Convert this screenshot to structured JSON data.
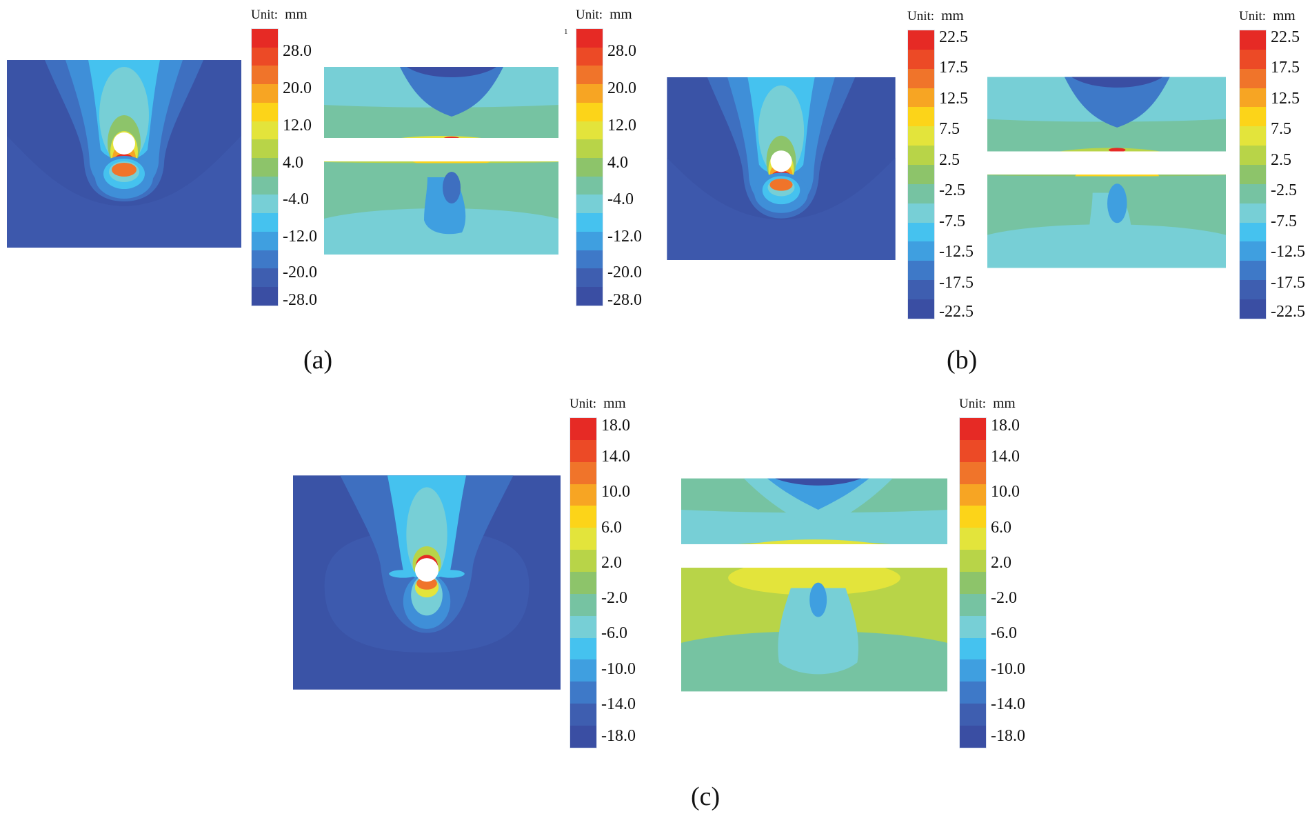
{
  "figure": {
    "panels": [
      {
        "caption": "(a)",
        "legend_left": {
          "unit_label": "Unit:",
          "unit": "mm",
          "ticks": [
            "28.0",
            "20.0",
            "12.0",
            "4.0",
            "-4.0",
            "-12.0",
            "-20.0",
            "-28.0"
          ]
        },
        "legend_right": {
          "unit_label": "Unit:",
          "unit": "mm",
          "ticks": [
            "28.0",
            "20.0",
            "12.0",
            "4.0",
            "-4.0",
            "-12.0",
            "-20.0",
            "-28.0"
          ]
        },
        "stray_mark": "1"
      },
      {
        "caption": "(b)",
        "legend_left": {
          "unit_label": "Unit:",
          "unit": "mm",
          "ticks": [
            "22.5",
            "17.5",
            "12.5",
            "7.5",
            "2.5",
            "-2.5",
            "-7.5",
            "-12.5",
            "-17.5",
            "-22.5"
          ]
        },
        "legend_right": {
          "unit_label": "Unit:",
          "unit": "mm",
          "ticks": [
            "22.5",
            "17.5",
            "12.5",
            "7.5",
            "2.5",
            "-2.5",
            "-7.5",
            "-12.5",
            "-17.5",
            "-22.5"
          ]
        }
      },
      {
        "caption": "(c)",
        "legend_left": {
          "unit_label": "Unit:",
          "unit": "mm",
          "ticks": [
            "18.0",
            "14.0",
            "10.0",
            "6.0",
            "2.0",
            "-2.0",
            "-6.0",
            "-10.0",
            "-14.0",
            "-18.0"
          ]
        },
        "legend_right": {
          "unit_label": "Unit:",
          "unit": "mm",
          "ticks": [
            "18.0",
            "14.0",
            "10.0",
            "6.0",
            "2.0",
            "-2.0",
            "-6.0",
            "-10.0",
            "-14.0",
            "-18.0"
          ]
        }
      }
    ],
    "colorscale": [
      "#e62a25",
      "#ec4a26",
      "#f0742a",
      "#f7a523",
      "#fcd419",
      "#e3e43b",
      "#b8d448",
      "#8dc46a",
      "#76c3a2",
      "#77cfd6",
      "#45c2ef",
      "#3f9fe0",
      "#3e79c8",
      "#3e5eb0",
      "#3a4ea3"
    ]
  }
}
